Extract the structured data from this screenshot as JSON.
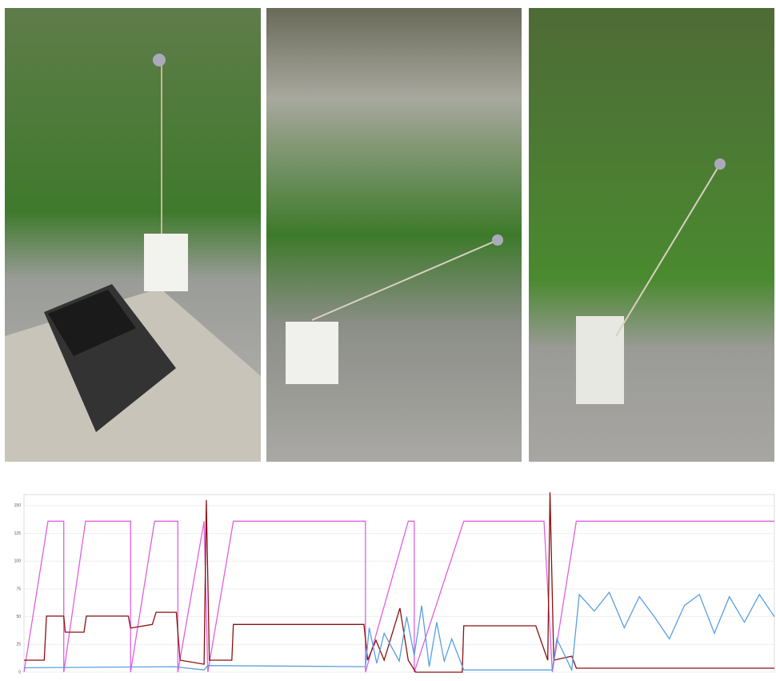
{
  "chart_data": {
    "type": "line",
    "ylim": [
      0,
      160
    ],
    "yticks": [
      0,
      25,
      50,
      75,
      100,
      125,
      150
    ],
    "xlim": [
      0,
      100
    ],
    "grid": true,
    "series": [
      {
        "color": "#e060e0",
        "x": [
          0,
          3.2,
          5.3,
          5.3,
          8.2,
          14.2,
          14.2,
          17.4,
          20.5,
          20.5,
          24,
          24.5,
          27.9,
          45.5,
          45.5,
          51.2,
          52,
          52,
          58.6,
          69.3,
          70.4,
          73.6,
          100
        ],
        "values": [
          0,
          136,
          136,
          0,
          136,
          136,
          0,
          136,
          136,
          0,
          136,
          0,
          136,
          136,
          0,
          136,
          136,
          0,
          136,
          136,
          0,
          136,
          136
        ]
      },
      {
        "color": "#8b1010",
        "x": [
          0,
          2.7,
          3,
          5.3,
          5.5,
          8,
          8.3,
          13.9,
          14.2,
          17.1,
          17.6,
          20.3,
          20.8,
          24,
          24.3,
          24.7,
          27.7,
          27.9,
          45.3,
          45.8,
          46.9,
          48,
          50.1,
          51.2,
          52.2,
          58.4,
          58.6,
          68.2,
          69.8,
          70.1,
          70.6,
          73,
          73.6,
          100
        ],
        "values": [
          10.8,
          10.8,
          50.5,
          50.5,
          36,
          36,
          50.5,
          50.5,
          39.7,
          43,
          54,
          54,
          10.8,
          7.2,
          155,
          10.8,
          10.8,
          43,
          43,
          10.8,
          28.8,
          10.8,
          57.7,
          10.8,
          0,
          0,
          41.8,
          41.8,
          10.8,
          162,
          10.8,
          14.4,
          3.6,
          3.6
        ]
      },
      {
        "color": "#5aa0e0",
        "x": [
          0,
          20,
          24,
          24.5,
          45.5,
          46,
          47,
          48,
          50,
          51,
          52,
          53,
          54,
          55,
          56,
          57,
          58.6,
          70.4,
          71,
          73,
          74,
          76,
          78,
          80,
          82,
          84,
          86,
          88,
          90,
          92,
          94,
          96,
          98,
          100
        ],
        "values": [
          4,
          5,
          2,
          6,
          5,
          40,
          8,
          35,
          10,
          50,
          15,
          60,
          5,
          45,
          10,
          30,
          2,
          2,
          30,
          2,
          70,
          55,
          72,
          40,
          68,
          50,
          30,
          60,
          70,
          35,
          68,
          45,
          70,
          50
        ]
      }
    ]
  }
}
